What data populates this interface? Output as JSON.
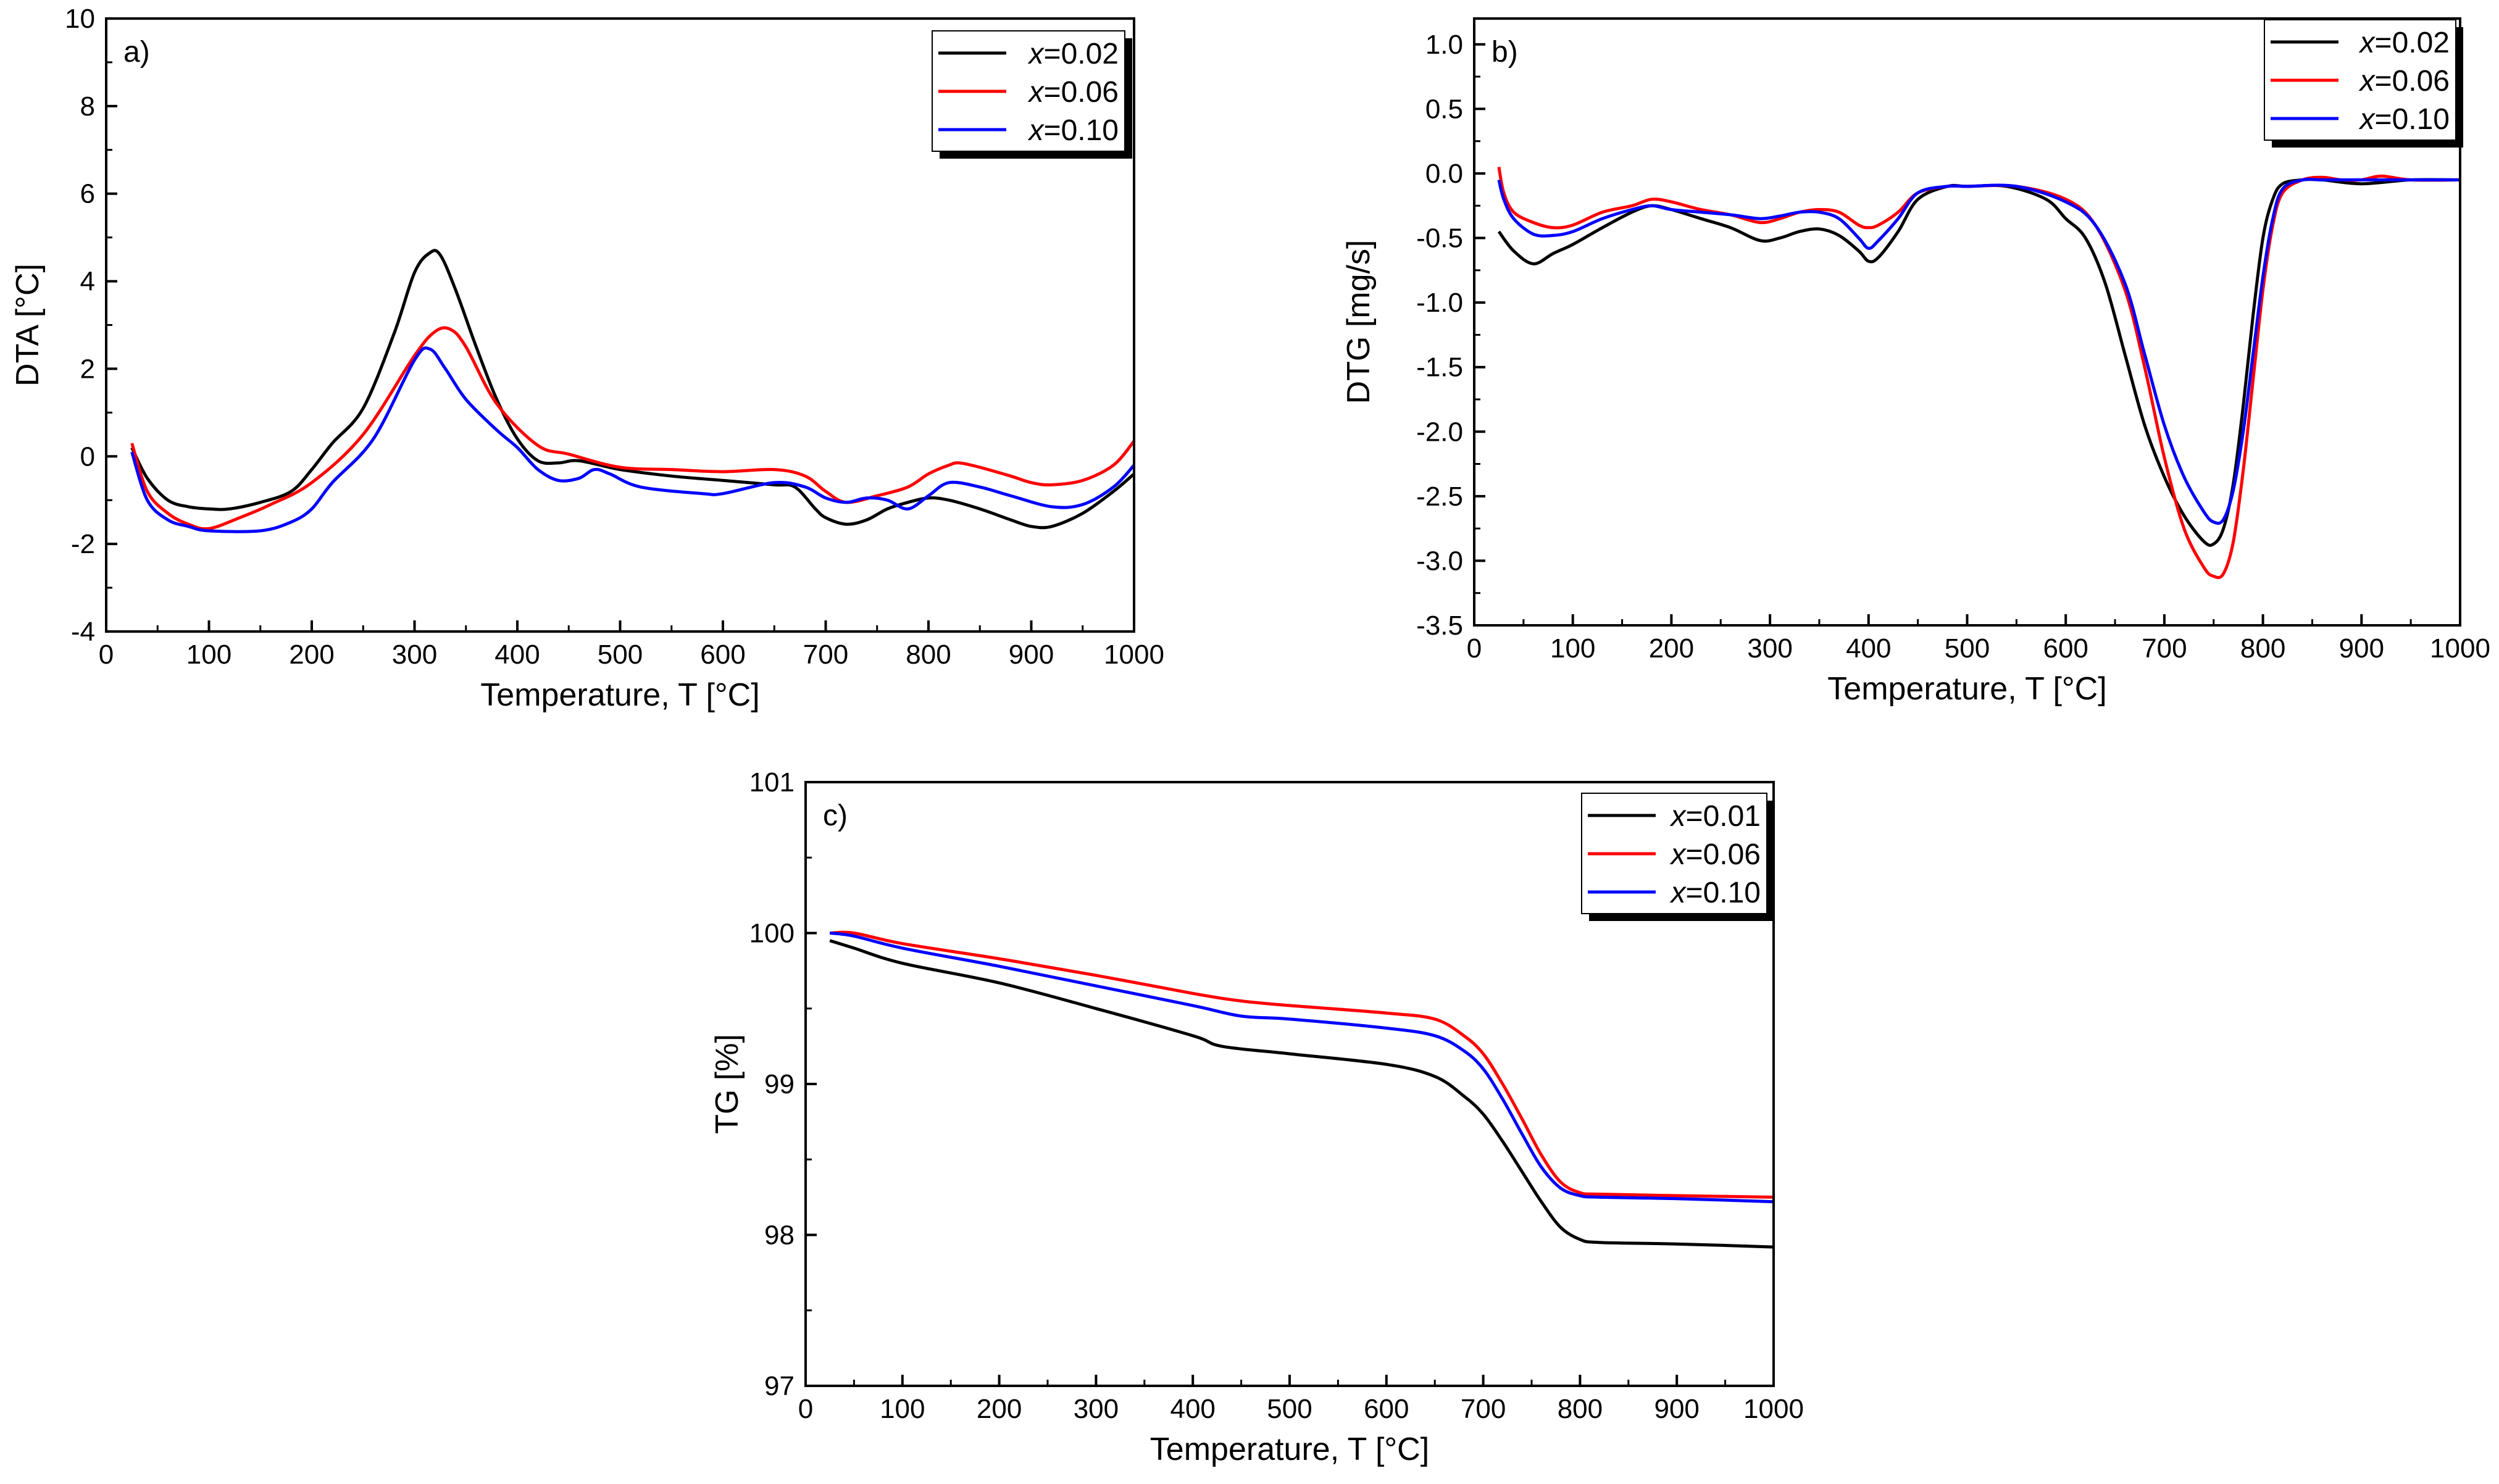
{
  "chart_data": [
    {
      "type": "line",
      "panel_label": "a)",
      "xlabel": "Temperature, T [°C]",
      "ylabel": "DTA [°C]",
      "xlim": [
        0,
        1000
      ],
      "ylim": [
        -4,
        10
      ],
      "xticks": [
        0,
        100,
        200,
        300,
        400,
        500,
        600,
        700,
        800,
        900,
        1000
      ],
      "yticks": [
        -4,
        -2,
        0,
        2,
        4,
        6,
        8,
        10
      ],
      "legend_position": "top-right",
      "series": [
        {
          "name": "x=0.02",
          "color": "#000000",
          "x": [
            25,
            40,
            60,
            80,
            100,
            120,
            150,
            180,
            200,
            220,
            250,
            280,
            300,
            315,
            325,
            340,
            360,
            380,
            400,
            420,
            440,
            460,
            500,
            550,
            600,
            650,
            670,
            690,
            700,
            720,
            740,
            760,
            780,
            800,
            820,
            850,
            880,
            900,
            920,
            950,
            980,
            1000
          ],
          "y": [
            0.2,
            -0.5,
            -1.0,
            -1.15,
            -1.2,
            -1.2,
            -1.05,
            -0.8,
            -0.3,
            0.3,
            1.1,
            2.8,
            4.2,
            4.65,
            4.6,
            3.8,
            2.5,
            1.3,
            0.4,
            -0.1,
            -0.15,
            -0.1,
            -0.3,
            -0.45,
            -0.55,
            -0.65,
            -0.7,
            -1.2,
            -1.4,
            -1.55,
            -1.45,
            -1.2,
            -1.05,
            -0.95,
            -1.0,
            -1.2,
            -1.45,
            -1.6,
            -1.6,
            -1.3,
            -0.8,
            -0.4
          ]
        },
        {
          "name": "x=0.06",
          "color": "#ff0000",
          "x": [
            25,
            40,
            60,
            80,
            100,
            130,
            160,
            200,
            250,
            300,
            320,
            335,
            350,
            380,
            420,
            450,
            500,
            550,
            600,
            650,
            680,
            700,
            720,
            750,
            780,
            800,
            820,
            830,
            850,
            880,
            900,
            920,
            950,
            980,
            1000
          ],
          "y": [
            0.3,
            -0.8,
            -1.3,
            -1.55,
            -1.65,
            -1.4,
            -1.1,
            -0.6,
            0.5,
            2.3,
            2.85,
            2.9,
            2.5,
            1.2,
            0.25,
            0.05,
            -0.25,
            -0.3,
            -0.35,
            -0.3,
            -0.45,
            -0.8,
            -1.05,
            -0.9,
            -0.7,
            -0.4,
            -0.2,
            -0.15,
            -0.25,
            -0.45,
            -0.6,
            -0.65,
            -0.55,
            -0.2,
            0.35
          ]
        },
        {
          "name": "x=0.10",
          "color": "#0000ff",
          "x": [
            25,
            40,
            60,
            80,
            100,
            150,
            180,
            200,
            220,
            260,
            300,
            315,
            330,
            350,
            380,
            400,
            420,
            440,
            460,
            475,
            490,
            520,
            580,
            600,
            650,
            680,
            700,
            720,
            740,
            760,
            780,
            800,
            820,
            850,
            880,
            920,
            950,
            980,
            1000
          ],
          "y": [
            0.1,
            -1.0,
            -1.45,
            -1.6,
            -1.7,
            -1.7,
            -1.5,
            -1.2,
            -0.6,
            0.4,
            2.2,
            2.45,
            2.0,
            1.3,
            0.6,
            0.2,
            -0.3,
            -0.55,
            -0.5,
            -0.3,
            -0.4,
            -0.7,
            -0.85,
            -0.85,
            -0.6,
            -0.7,
            -0.95,
            -1.05,
            -0.95,
            -1.0,
            -1.2,
            -0.9,
            -0.6,
            -0.7,
            -0.9,
            -1.15,
            -1.1,
            -0.7,
            -0.2
          ]
        }
      ]
    },
    {
      "type": "line",
      "panel_label": "b)",
      "xlabel": "Temperature, T [°C]",
      "ylabel": "DTG [mg/s]",
      "xlim": [
        0,
        1000
      ],
      "ylim": [
        -3.5,
        1.2
      ],
      "xticks": [
        0,
        100,
        200,
        300,
        400,
        500,
        600,
        700,
        800,
        900,
        1000
      ],
      "yticks": [
        -3.5,
        -3.0,
        -2.5,
        -2.0,
        -1.5,
        -1.0,
        -0.5,
        0.0,
        0.5,
        1.0
      ],
      "ytick_labels": [
        "-3.5",
        "-3.0",
        "-2.5",
        "-2.0",
        "-1.5",
        "-1.0",
        "-0.5",
        "0.0",
        "0.5",
        "1.0"
      ],
      "legend_position": "top-right",
      "series": [
        {
          "name": "x=0.02",
          "color": "#000000",
          "x": [
            25,
            40,
            60,
            80,
            100,
            130,
            160,
            180,
            200,
            230,
            260,
            290,
            310,
            330,
            350,
            370,
            390,
            400,
            410,
            430,
            450,
            480,
            500,
            540,
            580,
            600,
            620,
            640,
            660,
            680,
            700,
            720,
            740,
            750,
            760,
            770,
            780,
            790,
            800,
            810,
            820,
            840,
            860,
            900,
            950,
            1000
          ],
          "y": [
            -0.45,
            -0.6,
            -0.7,
            -0.62,
            -0.55,
            -0.42,
            -0.3,
            -0.25,
            -0.28,
            -0.35,
            -0.42,
            -0.52,
            -0.5,
            -0.45,
            -0.43,
            -0.48,
            -0.6,
            -0.68,
            -0.65,
            -0.45,
            -0.2,
            -0.1,
            -0.1,
            -0.1,
            -0.2,
            -0.35,
            -0.5,
            -0.85,
            -1.4,
            -1.95,
            -2.35,
            -2.65,
            -2.85,
            -2.87,
            -2.75,
            -2.4,
            -1.8,
            -1.1,
            -0.5,
            -0.2,
            -0.08,
            -0.05,
            -0.05,
            -0.08,
            -0.05,
            -0.05
          ]
        },
        {
          "name": "x=0.06",
          "color": "#ff0000",
          "x": [
            25,
            30,
            40,
            60,
            80,
            100,
            130,
            160,
            180,
            200,
            230,
            260,
            290,
            310,
            330,
            350,
            370,
            390,
            400,
            410,
            430,
            450,
            480,
            500,
            550,
            600,
            630,
            660,
            680,
            700,
            720,
            740,
            750,
            760,
            770,
            780,
            790,
            800,
            810,
            820,
            840,
            860,
            880,
            900,
            920,
            950,
            1000
          ],
          "y": [
            0.05,
            -0.15,
            -0.3,
            -0.38,
            -0.42,
            -0.4,
            -0.3,
            -0.25,
            -0.2,
            -0.22,
            -0.28,
            -0.32,
            -0.38,
            -0.35,
            -0.3,
            -0.28,
            -0.3,
            -0.4,
            -0.42,
            -0.4,
            -0.3,
            -0.15,
            -0.1,
            -0.1,
            -0.1,
            -0.2,
            -0.4,
            -0.9,
            -1.5,
            -2.2,
            -2.75,
            -3.05,
            -3.12,
            -3.1,
            -2.85,
            -2.3,
            -1.6,
            -0.9,
            -0.4,
            -0.15,
            -0.05,
            -0.03,
            -0.05,
            -0.05,
            -0.02,
            -0.05,
            -0.05
          ]
        },
        {
          "name": "x=0.10",
          "color": "#0000ff",
          "x": [
            25,
            30,
            40,
            60,
            80,
            100,
            130,
            160,
            180,
            200,
            230,
            260,
            290,
            310,
            330,
            350,
            370,
            390,
            400,
            410,
            430,
            450,
            480,
            500,
            550,
            600,
            630,
            660,
            680,
            700,
            720,
            740,
            750,
            760,
            770,
            780,
            790,
            800,
            810,
            820,
            840,
            860,
            900,
            950,
            1000
          ],
          "y": [
            -0.05,
            -0.2,
            -0.35,
            -0.47,
            -0.48,
            -0.45,
            -0.35,
            -0.28,
            -0.25,
            -0.28,
            -0.3,
            -0.32,
            -0.35,
            -0.33,
            -0.3,
            -0.3,
            -0.35,
            -0.5,
            -0.58,
            -0.52,
            -0.35,
            -0.15,
            -0.1,
            -0.1,
            -0.1,
            -0.22,
            -0.4,
            -0.85,
            -1.4,
            -1.95,
            -2.35,
            -2.62,
            -2.7,
            -2.68,
            -2.45,
            -2.0,
            -1.4,
            -0.8,
            -0.35,
            -0.12,
            -0.05,
            -0.05,
            -0.05,
            -0.05,
            -0.05
          ]
        }
      ]
    },
    {
      "type": "line",
      "panel_label": "c)",
      "xlabel": "Temperature, T [°C]",
      "ylabel": "TG [%]",
      "xlim": [
        0,
        1000
      ],
      "ylim": [
        97,
        101
      ],
      "xticks": [
        0,
        100,
        200,
        300,
        400,
        500,
        600,
        700,
        800,
        900,
        1000
      ],
      "yticks": [
        97,
        98,
        99,
        100,
        101
      ],
      "legend_position": "top-right",
      "series": [
        {
          "name": "x=0.01",
          "color": "#000000",
          "x": [
            25,
            50,
            100,
            200,
            300,
            400,
            430,
            500,
            600,
            650,
            680,
            700,
            720,
            740,
            760,
            780,
            800,
            820,
            900,
            1000
          ],
          "y": [
            99.95,
            99.9,
            99.8,
            99.67,
            99.5,
            99.32,
            99.25,
            99.2,
            99.13,
            99.05,
            98.92,
            98.8,
            98.62,
            98.42,
            98.22,
            98.05,
            97.97,
            97.95,
            97.94,
            97.92
          ]
        },
        {
          "name": "x=0.06",
          "color": "#ff0000",
          "x": [
            25,
            50,
            100,
            200,
            300,
            400,
            450,
            500,
            600,
            650,
            680,
            700,
            720,
            740,
            760,
            780,
            800,
            820,
            900,
            1000
          ],
          "y": [
            100.0,
            100.0,
            99.93,
            99.83,
            99.72,
            99.6,
            99.55,
            99.52,
            99.47,
            99.43,
            99.32,
            99.2,
            99.0,
            98.77,
            98.53,
            98.35,
            98.28,
            98.27,
            98.26,
            98.25
          ]
        },
        {
          "name": "x=0.10",
          "color": "#0000ff",
          "x": [
            25,
            50,
            100,
            200,
            300,
            400,
            450,
            500,
            600,
            650,
            680,
            700,
            720,
            740,
            760,
            780,
            800,
            820,
            900,
            1000
          ],
          "y": [
            100.0,
            99.98,
            99.9,
            99.78,
            99.65,
            99.52,
            99.45,
            99.43,
            99.37,
            99.32,
            99.22,
            99.1,
            98.9,
            98.67,
            98.45,
            98.31,
            98.26,
            98.25,
            98.24,
            98.22
          ]
        }
      ]
    }
  ]
}
